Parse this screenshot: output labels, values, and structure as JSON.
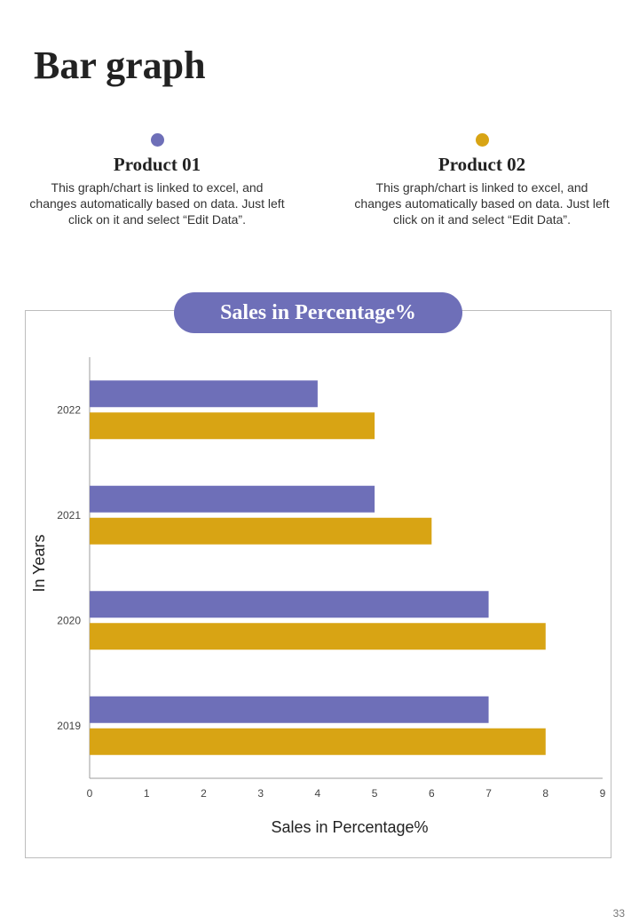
{
  "page": {
    "title": "Bar graph",
    "page_number": "33"
  },
  "colors": {
    "product_01": "#6e6fb8",
    "product_02": "#d8a414",
    "pill": "#6e6fb8"
  },
  "products": [
    {
      "name": "Product 01",
      "description": "This graph/chart is linked to excel, and changes automatically based on data. Just left click on it and select “Edit Data”."
    },
    {
      "name": "Product 02",
      "description": "This graph/chart is linked to excel, and changes automatically based on data. Just left click on it and select “Edit Data”."
    }
  ],
  "chart_data": {
    "type": "bar",
    "orientation": "horizontal",
    "title": "Sales in Percentage%",
    "xlabel": "Sales in Percentage%",
    "ylabel": "In Years",
    "categories": [
      "2022",
      "2021",
      "2020",
      "2019"
    ],
    "series": [
      {
        "values": [
          4,
          5,
          7,
          7
        ]
      },
      {
        "values": [
          5,
          6,
          8,
          8
        ]
      }
    ],
    "xlim": [
      0,
      9
    ],
    "xticks": [
      "0",
      "1",
      "2",
      "3",
      "4",
      "5",
      "6",
      "7",
      "8",
      "9"
    ],
    "grid": false
  }
}
